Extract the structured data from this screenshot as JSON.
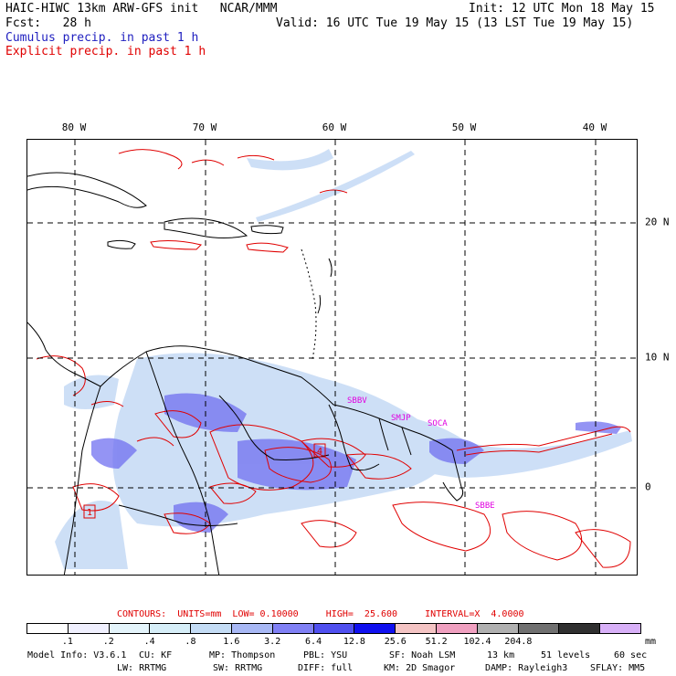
{
  "header": {
    "title": "HAIC-HIWC 13km ARW-GFS init   NCAR/MMM",
    "fcst": "Fcst:   28 h",
    "init": "Init: 12 UTC Mon 18 May 15",
    "valid": "Valid: 16 UTC Tue 19 May 15 (13 LST Tue 19 May 15)",
    "cumulus": "Cumulus precip. in past 1 h",
    "explicit": "Explicit precip. in past 1 h"
  },
  "map": {
    "lon_labels": [
      "80 W",
      "70 W",
      "60 W",
      "50 W",
      "40 W"
    ],
    "lat_labels": [
      "20 N",
      "10 N",
      "0"
    ],
    "markers": [
      "4",
      "1"
    ],
    "station_labels": [
      "SBBV",
      "SMJP",
      "SOCA",
      "SBBE"
    ],
    "colors": {
      "coast": "#000000",
      "grid": "#000000",
      "explicit": "#e00000",
      "cumulus": "#4040f0",
      "station": "#e000e0"
    }
  },
  "contours": "CONTOURS:  UNITS=mm  LOW= 0.10000     HIGH=  25.600     INTERVAL=X  4.0000",
  "colorbar": {
    "colors": [
      "#ffffff",
      "#f0f0ff",
      "#e4f4fb",
      "#d6eef8",
      "#c4dcf5",
      "#a8b8f5",
      "#8080f5",
      "#5050f0",
      "#1010f0",
      "#f4c4c4",
      "#f0a0c0",
      "#b0b0b0",
      "#707070",
      "#303030",
      "#d8b0f8"
    ],
    "ticks": [
      ".1",
      ".2",
      ".4",
      ".8",
      "1.6",
      "3.2",
      "6.4",
      "12.8",
      "25.6",
      "51.2",
      "102.4",
      "204.8"
    ],
    "unit": "mm"
  },
  "model_info": {
    "line1": [
      "Model Info: V3.6.1",
      "CU: KF",
      "MP: Thompson",
      "PBL: YSU",
      "SF: Noah LSM",
      "13 km",
      "51 levels",
      "60 sec"
    ],
    "line2": [
      "LW: RRTMG",
      "SW: RRTMG",
      "DIFF: full",
      "KM: 2D Smagor",
      "DAMP: Rayleigh3",
      "SFLAY: MM5"
    ]
  }
}
